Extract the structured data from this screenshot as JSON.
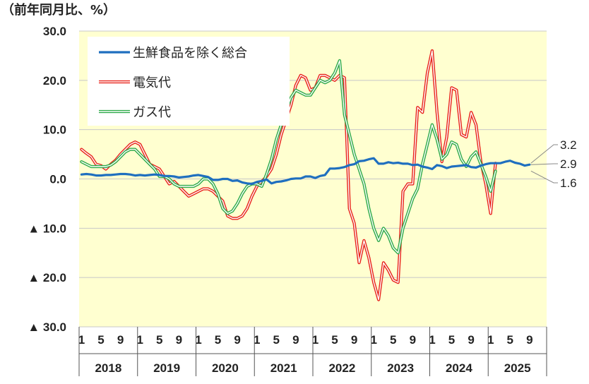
{
  "chart_data": {
    "type": "line",
    "unit_label": "（前年同月比、%）",
    "ylim": [
      -30,
      30
    ],
    "yticks": [
      "30.0",
      "20.0",
      "10.0",
      "0.0",
      "▲ 10.0",
      "▲ 20.0",
      "▲ 30.0"
    ],
    "ytick_values": [
      30,
      20,
      10,
      0,
      -10,
      -20,
      -30
    ],
    "xtick_labels": [
      "1",
      "5",
      "9",
      "1",
      "5",
      "9",
      "1",
      "5",
      "9",
      "1",
      "5",
      "9",
      "1",
      "5",
      "9",
      "1",
      "5",
      "9",
      "1",
      "5",
      "9",
      "1",
      "5",
      "9"
    ],
    "years": [
      "2018",
      "2019",
      "2020",
      "2021",
      "2022",
      "2023",
      "2024",
      "2025"
    ],
    "grid": "horizontal",
    "legend_position": "top-left",
    "plot_background": "#FFFFD0",
    "series": [
      {
        "name": "生鮮食品を除く総合",
        "color": "#1F6FBF",
        "style": "solid",
        "values": [
          0.9,
          1.0,
          0.9,
          0.7,
          0.7,
          0.8,
          0.8,
          0.9,
          1.0,
          1.0,
          0.9,
          0.7,
          0.8,
          0.7,
          0.8,
          0.9,
          0.8,
          0.6,
          0.6,
          0.5,
          0.3,
          0.4,
          0.5,
          0.7,
          0.8,
          0.6,
          0.4,
          -0.2,
          -0.2,
          0.0,
          0.0,
          -0.4,
          -0.3,
          -0.7,
          -0.9,
          -1.0,
          -0.6,
          -0.4,
          -0.1,
          -0.9,
          -0.6,
          -0.5,
          -0.3,
          0.0,
          0.1,
          0.1,
          0.5,
          0.5,
          0.2,
          0.6,
          0.8,
          2.1,
          2.1,
          2.2,
          2.4,
          2.8,
          3.0,
          3.6,
          3.7,
          4.0,
          4.2,
          3.1,
          3.1,
          3.4,
          3.2,
          3.3,
          3.1,
          3.1,
          2.8,
          2.9,
          2.5,
          2.3,
          2.0,
          2.8,
          2.6,
          2.2,
          2.5,
          2.6,
          2.7,
          2.8,
          2.4,
          2.3,
          2.7,
          3.0,
          3.2,
          3.2,
          3.2,
          3.5,
          3.7,
          3.3,
          3.1,
          2.7,
          2.9
        ]
      },
      {
        "name": "電気代",
        "color": "#E8231B",
        "style": "double",
        "values": [
          6.0,
          5.2,
          4.5,
          3.0,
          2.7,
          2.0,
          3.0,
          3.8,
          5.0,
          6.0,
          7.0,
          7.5,
          7.0,
          5.0,
          3.0,
          2.5,
          2.0,
          0.5,
          -1.0,
          -0.5,
          -1.5,
          -2.5,
          -3.5,
          -3.0,
          -2.5,
          -2.0,
          -2.0,
          -2.5,
          -3.5,
          -4.5,
          -7.5,
          -8.0,
          -8.0,
          -7.5,
          -6.0,
          -3.5,
          -1.5,
          -0.5,
          0.5,
          2.0,
          5.0,
          9.0,
          12.0,
          15.0,
          19.0,
          21.0,
          20.5,
          18.0,
          18.5,
          21.0,
          21.0,
          20.5,
          20.0,
          21.0,
          20.5,
          -6.0,
          -9.0,
          -17.0,
          -12.5,
          -16.0,
          -21.0,
          -24.5,
          -17.0,
          -18.5,
          -20.5,
          -21.0,
          -2.5,
          -1.0,
          -1.0,
          14.5,
          13.5,
          21.5,
          26.0,
          13.5,
          3.5,
          8.5,
          18.5,
          18.0,
          9.0,
          8.5,
          13.5,
          11.0,
          3.5,
          -1.0,
          -7.0,
          3.2
        ]
      },
      {
        "name": "ガス代",
        "color": "#2EAA4A",
        "style": "double",
        "values": [
          3.5,
          3.0,
          2.5,
          2.5,
          2.5,
          2.5,
          2.8,
          3.5,
          4.5,
          5.5,
          6.0,
          6.0,
          5.0,
          4.0,
          3.0,
          2.0,
          0.5,
          0.5,
          0.0,
          -1.0,
          -1.5,
          -1.5,
          -1.5,
          -1.5,
          -1.0,
          0.0,
          0.0,
          -1.0,
          -3.0,
          -6.0,
          -7.0,
          -6.5,
          -5.0,
          -3.0,
          -1.5,
          -1.0,
          -1.0,
          -1.5,
          1.0,
          4.0,
          8.0,
          11.0,
          14.0,
          16.5,
          18.0,
          17.5,
          17.0,
          17.0,
          18.5,
          20.0,
          19.5,
          20.0,
          21.5,
          24.0,
          13.0,
          9.0,
          5.0,
          2.0,
          -1.0,
          -6.0,
          -10.0,
          -12.5,
          -10.0,
          -11.5,
          -14.0,
          -15.0,
          -10.0,
          -7.0,
          -4.0,
          -2.0,
          3.0,
          7.0,
          11.0,
          8.0,
          4.0,
          5.0,
          7.5,
          7.0,
          4.0,
          2.5,
          4.5,
          5.5,
          3.0,
          0.5,
          -2.5,
          1.6
        ]
      }
    ],
    "end_labels": [
      "3.2",
      "2.9",
      "1.6"
    ]
  }
}
